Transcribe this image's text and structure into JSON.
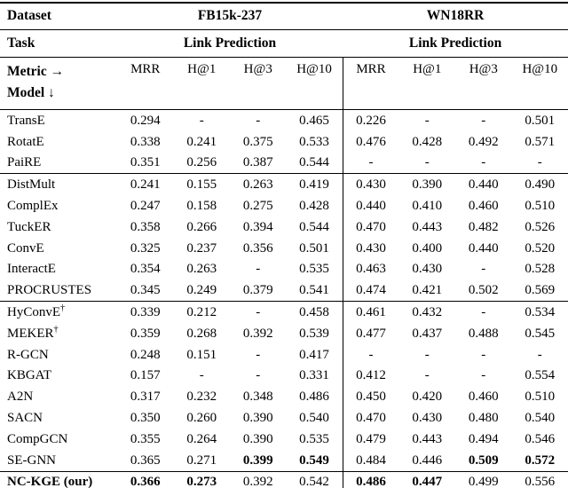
{
  "colors": {
    "background": "#ffffff",
    "text": "#000000",
    "rule": "#000000"
  },
  "table": {
    "header": {
      "dataset_label": "Dataset",
      "datasets": [
        "FB15k-237",
        "WN18RR"
      ],
      "task_label": "Task",
      "tasks": [
        "Link Prediction",
        "Link Prediction"
      ],
      "metric_label": "Metric →",
      "model_label": "Model ↓",
      "metrics": [
        "MRR",
        "H@1",
        "H@3",
        "H@10",
        "MRR",
        "H@1",
        "H@3",
        "H@10"
      ]
    },
    "groups": [
      {
        "rows": [
          {
            "model": "TransE",
            "values": [
              "0.294",
              "-",
              "-",
              "0.465",
              "0.226",
              "-",
              "-",
              "0.501"
            ]
          },
          {
            "model": "RotatE",
            "values": [
              "0.338",
              "0.241",
              "0.375",
              "0.533",
              "0.476",
              "0.428",
              "0.492",
              "0.571"
            ]
          },
          {
            "model": "PaiRE",
            "values": [
              "0.351",
              "0.256",
              "0.387",
              "0.544",
              "-",
              "-",
              "-",
              "-"
            ]
          }
        ]
      },
      {
        "rows": [
          {
            "model": "DistMult",
            "values": [
              "0.241",
              "0.155",
              "0.263",
              "0.419",
              "0.430",
              "0.390",
              "0.440",
              "0.490"
            ]
          },
          {
            "model": "ComplEx",
            "values": [
              "0.247",
              "0.158",
              "0.275",
              "0.428",
              "0.440",
              "0.410",
              "0.460",
              "0.510"
            ]
          },
          {
            "model": "TuckER",
            "values": [
              "0.358",
              "0.266",
              "0.394",
              "0.544",
              "0.470",
              "0.443",
              "0.482",
              "0.526"
            ]
          },
          {
            "model": "ConvE",
            "values": [
              "0.325",
              "0.237",
              "0.356",
              "0.501",
              "0.430",
              "0.400",
              "0.440",
              "0.520"
            ]
          },
          {
            "model": "InteractE",
            "values": [
              "0.354",
              "0.263",
              "-",
              "0.535",
              "0.463",
              "0.430",
              "-",
              "0.528"
            ]
          },
          {
            "model": "PROCRUSTES",
            "values": [
              "0.345",
              "0.249",
              "0.379",
              "0.541",
              "0.474",
              "0.421",
              "0.502",
              "0.569"
            ]
          }
        ]
      },
      {
        "rows": [
          {
            "model": "HyConvE",
            "sup": "†",
            "values": [
              "0.339",
              "0.212",
              "-",
              "0.458",
              "0.461",
              "0.432",
              "-",
              "0.534"
            ]
          },
          {
            "model": "MEKER",
            "sup": "†",
            "values": [
              "0.359",
              "0.268",
              "0.392",
              "0.539",
              "0.477",
              "0.437",
              "0.488",
              "0.545"
            ]
          },
          {
            "model": "R-GCN",
            "values": [
              "0.248",
              "0.151",
              "-",
              "0.417",
              "-",
              "-",
              "-",
              "-"
            ]
          },
          {
            "model": "KBGAT",
            "values": [
              "0.157",
              "-",
              "-",
              "0.331",
              "0.412",
              "-",
              "-",
              "0.554"
            ]
          },
          {
            "model": "A2N",
            "values": [
              "0.317",
              "0.232",
              "0.348",
              "0.486",
              "0.450",
              "0.420",
              "0.460",
              "0.510"
            ]
          },
          {
            "model": "SACN",
            "values": [
              "0.350",
              "0.260",
              "0.390",
              "0.540",
              "0.470",
              "0.430",
              "0.480",
              "0.540"
            ]
          },
          {
            "model": "CompGCN",
            "values": [
              "0.355",
              "0.264",
              "0.390",
              "0.535",
              "0.479",
              "0.443",
              "0.494",
              "0.546"
            ]
          },
          {
            "model": "SE-GNN",
            "values": [
              "0.365",
              "0.271",
              "0.399",
              "0.549",
              "0.484",
              "0.446",
              "0.509",
              "0.572"
            ],
            "bold": [
              2,
              3,
              6,
              7
            ]
          }
        ]
      },
      {
        "rows": [
          {
            "model": "NC-KGE (our)",
            "model_bold": true,
            "values": [
              "0.366",
              "0.273",
              "0.392",
              "0.542",
              "0.486",
              "0.447",
              "0.499",
              "0.556"
            ],
            "bold": [
              0,
              1,
              4,
              5
            ]
          }
        ]
      }
    ]
  }
}
